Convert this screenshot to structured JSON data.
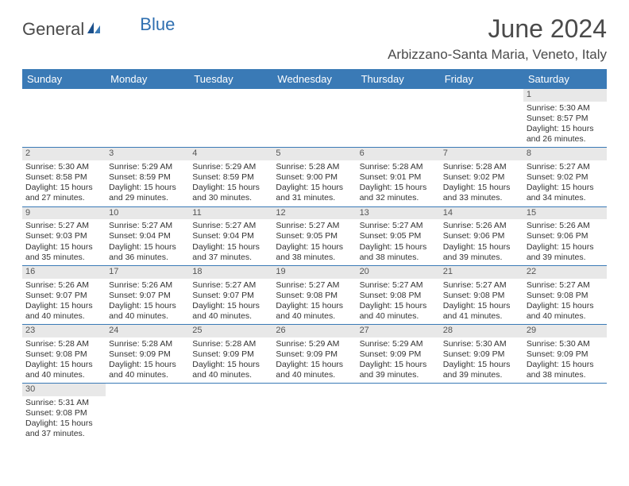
{
  "logo": {
    "part1": "General",
    "part2": "Blue"
  },
  "title": "June 2024",
  "location": "Arbizzano-Santa Maria, Veneto, Italy",
  "colors": {
    "header_bg": "#3a7ab6",
    "header_text": "#ffffff",
    "daynum_bg": "#e8e8e8",
    "border": "#3a7ab6",
    "title_color": "#4a4a4a",
    "logo_blue": "#2f6fb0"
  },
  "weekdays": [
    "Sunday",
    "Monday",
    "Tuesday",
    "Wednesday",
    "Thursday",
    "Friday",
    "Saturday"
  ],
  "weeks": [
    [
      {
        "empty": true
      },
      {
        "empty": true
      },
      {
        "empty": true
      },
      {
        "empty": true
      },
      {
        "empty": true
      },
      {
        "empty": true
      },
      {
        "num": "1",
        "sunrise": "Sunrise: 5:30 AM",
        "sunset": "Sunset: 8:57 PM",
        "daylight1": "Daylight: 15 hours",
        "daylight2": "and 26 minutes."
      }
    ],
    [
      {
        "num": "2",
        "sunrise": "Sunrise: 5:30 AM",
        "sunset": "Sunset: 8:58 PM",
        "daylight1": "Daylight: 15 hours",
        "daylight2": "and 27 minutes."
      },
      {
        "num": "3",
        "sunrise": "Sunrise: 5:29 AM",
        "sunset": "Sunset: 8:59 PM",
        "daylight1": "Daylight: 15 hours",
        "daylight2": "and 29 minutes."
      },
      {
        "num": "4",
        "sunrise": "Sunrise: 5:29 AM",
        "sunset": "Sunset: 8:59 PM",
        "daylight1": "Daylight: 15 hours",
        "daylight2": "and 30 minutes."
      },
      {
        "num": "5",
        "sunrise": "Sunrise: 5:28 AM",
        "sunset": "Sunset: 9:00 PM",
        "daylight1": "Daylight: 15 hours",
        "daylight2": "and 31 minutes."
      },
      {
        "num": "6",
        "sunrise": "Sunrise: 5:28 AM",
        "sunset": "Sunset: 9:01 PM",
        "daylight1": "Daylight: 15 hours",
        "daylight2": "and 32 minutes."
      },
      {
        "num": "7",
        "sunrise": "Sunrise: 5:28 AM",
        "sunset": "Sunset: 9:02 PM",
        "daylight1": "Daylight: 15 hours",
        "daylight2": "and 33 minutes."
      },
      {
        "num": "8",
        "sunrise": "Sunrise: 5:27 AM",
        "sunset": "Sunset: 9:02 PM",
        "daylight1": "Daylight: 15 hours",
        "daylight2": "and 34 minutes."
      }
    ],
    [
      {
        "num": "9",
        "sunrise": "Sunrise: 5:27 AM",
        "sunset": "Sunset: 9:03 PM",
        "daylight1": "Daylight: 15 hours",
        "daylight2": "and 35 minutes."
      },
      {
        "num": "10",
        "sunrise": "Sunrise: 5:27 AM",
        "sunset": "Sunset: 9:04 PM",
        "daylight1": "Daylight: 15 hours",
        "daylight2": "and 36 minutes."
      },
      {
        "num": "11",
        "sunrise": "Sunrise: 5:27 AM",
        "sunset": "Sunset: 9:04 PM",
        "daylight1": "Daylight: 15 hours",
        "daylight2": "and 37 minutes."
      },
      {
        "num": "12",
        "sunrise": "Sunrise: 5:27 AM",
        "sunset": "Sunset: 9:05 PM",
        "daylight1": "Daylight: 15 hours",
        "daylight2": "and 38 minutes."
      },
      {
        "num": "13",
        "sunrise": "Sunrise: 5:27 AM",
        "sunset": "Sunset: 9:05 PM",
        "daylight1": "Daylight: 15 hours",
        "daylight2": "and 38 minutes."
      },
      {
        "num": "14",
        "sunrise": "Sunrise: 5:26 AM",
        "sunset": "Sunset: 9:06 PM",
        "daylight1": "Daylight: 15 hours",
        "daylight2": "and 39 minutes."
      },
      {
        "num": "15",
        "sunrise": "Sunrise: 5:26 AM",
        "sunset": "Sunset: 9:06 PM",
        "daylight1": "Daylight: 15 hours",
        "daylight2": "and 39 minutes."
      }
    ],
    [
      {
        "num": "16",
        "sunrise": "Sunrise: 5:26 AM",
        "sunset": "Sunset: 9:07 PM",
        "daylight1": "Daylight: 15 hours",
        "daylight2": "and 40 minutes."
      },
      {
        "num": "17",
        "sunrise": "Sunrise: 5:26 AM",
        "sunset": "Sunset: 9:07 PM",
        "daylight1": "Daylight: 15 hours",
        "daylight2": "and 40 minutes."
      },
      {
        "num": "18",
        "sunrise": "Sunrise: 5:27 AM",
        "sunset": "Sunset: 9:07 PM",
        "daylight1": "Daylight: 15 hours",
        "daylight2": "and 40 minutes."
      },
      {
        "num": "19",
        "sunrise": "Sunrise: 5:27 AM",
        "sunset": "Sunset: 9:08 PM",
        "daylight1": "Daylight: 15 hours",
        "daylight2": "and 40 minutes."
      },
      {
        "num": "20",
        "sunrise": "Sunrise: 5:27 AM",
        "sunset": "Sunset: 9:08 PM",
        "daylight1": "Daylight: 15 hours",
        "daylight2": "and 40 minutes."
      },
      {
        "num": "21",
        "sunrise": "Sunrise: 5:27 AM",
        "sunset": "Sunset: 9:08 PM",
        "daylight1": "Daylight: 15 hours",
        "daylight2": "and 41 minutes."
      },
      {
        "num": "22",
        "sunrise": "Sunrise: 5:27 AM",
        "sunset": "Sunset: 9:08 PM",
        "daylight1": "Daylight: 15 hours",
        "daylight2": "and 40 minutes."
      }
    ],
    [
      {
        "num": "23",
        "sunrise": "Sunrise: 5:28 AM",
        "sunset": "Sunset: 9:08 PM",
        "daylight1": "Daylight: 15 hours",
        "daylight2": "and 40 minutes."
      },
      {
        "num": "24",
        "sunrise": "Sunrise: 5:28 AM",
        "sunset": "Sunset: 9:09 PM",
        "daylight1": "Daylight: 15 hours",
        "daylight2": "and 40 minutes."
      },
      {
        "num": "25",
        "sunrise": "Sunrise: 5:28 AM",
        "sunset": "Sunset: 9:09 PM",
        "daylight1": "Daylight: 15 hours",
        "daylight2": "and 40 minutes."
      },
      {
        "num": "26",
        "sunrise": "Sunrise: 5:29 AM",
        "sunset": "Sunset: 9:09 PM",
        "daylight1": "Daylight: 15 hours",
        "daylight2": "and 40 minutes."
      },
      {
        "num": "27",
        "sunrise": "Sunrise: 5:29 AM",
        "sunset": "Sunset: 9:09 PM",
        "daylight1": "Daylight: 15 hours",
        "daylight2": "and 39 minutes."
      },
      {
        "num": "28",
        "sunrise": "Sunrise: 5:30 AM",
        "sunset": "Sunset: 9:09 PM",
        "daylight1": "Daylight: 15 hours",
        "daylight2": "and 39 minutes."
      },
      {
        "num": "29",
        "sunrise": "Sunrise: 5:30 AM",
        "sunset": "Sunset: 9:09 PM",
        "daylight1": "Daylight: 15 hours",
        "daylight2": "and 38 minutes."
      }
    ],
    [
      {
        "num": "30",
        "sunrise": "Sunrise: 5:31 AM",
        "sunset": "Sunset: 9:08 PM",
        "daylight1": "Daylight: 15 hours",
        "daylight2": "and 37 minutes."
      },
      {
        "empty": true
      },
      {
        "empty": true
      },
      {
        "empty": true
      },
      {
        "empty": true
      },
      {
        "empty": true
      },
      {
        "empty": true
      }
    ]
  ]
}
